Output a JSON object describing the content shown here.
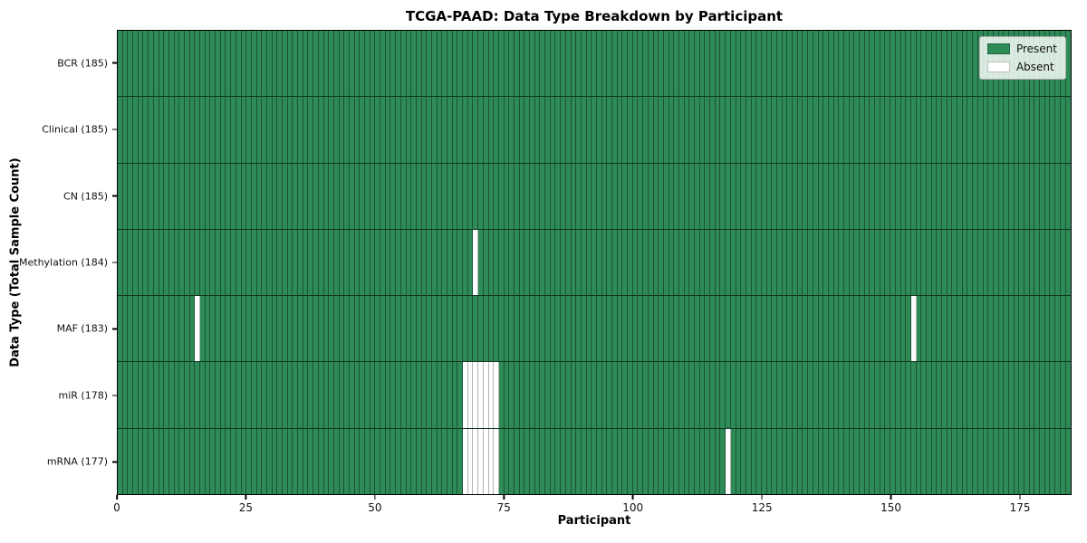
{
  "chart_data": {
    "type": "heatmap",
    "title": "TCGA-PAAD: Data Type Breakdown by Participant",
    "xlabel": "Participant",
    "ylabel": "Data Type (Total Sample Count)",
    "n_participants": 185,
    "xlim": [
      0,
      185
    ],
    "x_ticks": [
      0,
      25,
      50,
      75,
      100,
      125,
      150,
      175
    ],
    "grid": false,
    "rows": [
      {
        "data_type": "BCR",
        "label": "BCR (185)",
        "present_count": 185,
        "absent_participants": []
      },
      {
        "data_type": "Clinical",
        "label": "Clinical (185)",
        "present_count": 185,
        "absent_participants": []
      },
      {
        "data_type": "CN",
        "label": "CN (185)",
        "present_count": 185,
        "absent_participants": []
      },
      {
        "data_type": "Methylation",
        "label": "Methylation (184)",
        "present_count": 184,
        "absent_participants": [
          69
        ]
      },
      {
        "data_type": "MAF",
        "label": "MAF (183)",
        "present_count": 183,
        "absent_participants": [
          15,
          154
        ]
      },
      {
        "data_type": "miR",
        "label": "miR (178)",
        "present_count": 178,
        "absent_participants": [
          67,
          68,
          69,
          70,
          71,
          72,
          73
        ]
      },
      {
        "data_type": "mRNA",
        "label": "mRNA (177)",
        "present_count": 177,
        "absent_participants": [
          67,
          68,
          69,
          70,
          71,
          72,
          73,
          118
        ]
      }
    ],
    "legend": {
      "position": "upper right",
      "entries": [
        {
          "label": "Present",
          "color": "#2e8b57"
        },
        {
          "label": "Absent",
          "color": "#ffffff"
        }
      ]
    },
    "colors": {
      "present": "#2e8b57",
      "absent": "#ffffff"
    }
  }
}
